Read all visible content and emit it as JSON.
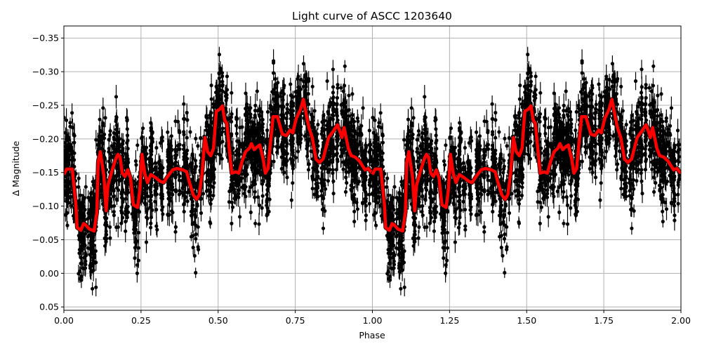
{
  "figure": {
    "background": "#ffffff",
    "title": "Light curve of ASCC 1203640"
  },
  "chart_data": {
    "type": "scatter",
    "title": "Light curve of ASCC 1203640",
    "xlabel": "Phase",
    "ylabel": "Δ Magnitude",
    "xlim": [
      0.0,
      2.0
    ],
    "ylim": [
      0.055,
      -0.368
    ],
    "y_inverted": true,
    "grid": true,
    "legend": null,
    "x_ticks": [
      0.0,
      0.25,
      0.5,
      0.75,
      1.0,
      1.25,
      1.5,
      1.75,
      2.0
    ],
    "x_tick_labels": [
      "0.00",
      "0.25",
      "0.50",
      "0.75",
      "1.00",
      "1.25",
      "1.50",
      "1.75",
      "2.00"
    ],
    "y_ticks": [
      -0.35,
      -0.3,
      -0.25,
      -0.2,
      -0.15,
      -0.1,
      -0.05,
      0.0,
      0.05
    ],
    "y_tick_labels": [
      "−0.35",
      "−0.30",
      "−0.25",
      "−0.20",
      "−0.15",
      "−0.10",
      "−0.05",
      "0.00",
      "0.05"
    ],
    "series": [
      {
        "name": "observations",
        "kind": "errorbar-scatter",
        "color": "#000000",
        "marker": "circle",
        "note": "Dense phase-folded photometry with error bars; values scatter roughly between -0.37 and +0.05 around the binned curve, repeated for phase 1-2."
      },
      {
        "name": "binned-curve",
        "kind": "line",
        "color": "#ff0000",
        "linewidth": 4,
        "period_repeat": true,
        "x": [
          0.0,
          0.009,
          0.027,
          0.039,
          0.043,
          0.055,
          0.064,
          0.071,
          0.082,
          0.098,
          0.107,
          0.111,
          0.118,
          0.13,
          0.137,
          0.143,
          0.157,
          0.168,
          0.175,
          0.182,
          0.189,
          0.198,
          0.207,
          0.216,
          0.225,
          0.239,
          0.246,
          0.253,
          0.262,
          0.271,
          0.282,
          0.298,
          0.312,
          0.323,
          0.339,
          0.353,
          0.366,
          0.385,
          0.398,
          0.407,
          0.419,
          0.43,
          0.439,
          0.448,
          0.457,
          0.466,
          0.476,
          0.485,
          0.494,
          0.505,
          0.514,
          0.521,
          0.528,
          0.537,
          0.544,
          0.557,
          0.567,
          0.578,
          0.589,
          0.601,
          0.608,
          0.617,
          0.626,
          0.635,
          0.646,
          0.653,
          0.662,
          0.669,
          0.678,
          0.692,
          0.708,
          0.721,
          0.733,
          0.742,
          0.753,
          0.767,
          0.776,
          0.785,
          0.794,
          0.805,
          0.817,
          0.828,
          0.84,
          0.858,
          0.874,
          0.887,
          0.894,
          0.901,
          0.908,
          0.922,
          0.931,
          0.944,
          0.958,
          0.976,
          0.987,
          0.999
        ],
        "y": [
          -0.147,
          -0.155,
          -0.155,
          -0.102,
          -0.068,
          -0.064,
          -0.074,
          -0.072,
          -0.066,
          -0.063,
          -0.091,
          -0.165,
          -0.181,
          -0.144,
          -0.093,
          -0.131,
          -0.154,
          -0.17,
          -0.177,
          -0.173,
          -0.149,
          -0.144,
          -0.154,
          -0.142,
          -0.102,
          -0.098,
          -0.123,
          -0.177,
          -0.149,
          -0.135,
          -0.147,
          -0.142,
          -0.137,
          -0.135,
          -0.146,
          -0.154,
          -0.156,
          -0.154,
          -0.151,
          -0.135,
          -0.117,
          -0.11,
          -0.117,
          -0.149,
          -0.202,
          -0.181,
          -0.175,
          -0.186,
          -0.241,
          -0.244,
          -0.249,
          -0.228,
          -0.223,
          -0.181,
          -0.149,
          -0.151,
          -0.149,
          -0.167,
          -0.181,
          -0.186,
          -0.193,
          -0.184,
          -0.188,
          -0.191,
          -0.17,
          -0.149,
          -0.156,
          -0.191,
          -0.233,
          -0.233,
          -0.207,
          -0.205,
          -0.213,
          -0.209,
          -0.23,
          -0.244,
          -0.259,
          -0.238,
          -0.217,
          -0.202,
          -0.17,
          -0.165,
          -0.17,
          -0.202,
          -0.212,
          -0.221,
          -0.212,
          -0.202,
          -0.217,
          -0.186,
          -0.175,
          -0.173,
          -0.167,
          -0.154,
          -0.156,
          -0.149
        ]
      }
    ]
  },
  "colors": {
    "curve": "#ff0000",
    "points": "#000000",
    "grid": "#b0b0b0",
    "axes": "#000000"
  }
}
